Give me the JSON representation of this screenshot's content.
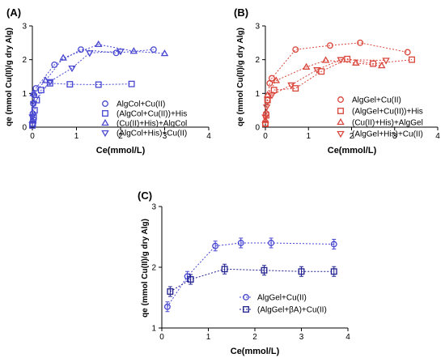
{
  "chart_data": [
    {
      "panel_label": "(A)",
      "type": "scatter",
      "xlabel": "Ce(mmol/L)",
      "ylabel": "qe (mmol Cu(II)/g dry Alg)",
      "xlim": [
        0,
        4
      ],
      "ylim": [
        0,
        3
      ],
      "xticks": [
        "0",
        "1",
        "2",
        "3",
        "4"
      ],
      "yticks": [
        "0",
        "1",
        "2",
        "3"
      ],
      "legend": "bottom-right",
      "series": [
        {
          "name": "AlgCol+Cu(II)",
          "marker": "circle",
          "color": "#4747d1",
          "x": [
            0.0,
            0.01,
            0.02,
            0.04,
            0.08,
            0.5,
            1.1,
            1.9,
            2.75
          ],
          "y": [
            0.1,
            0.4,
            0.7,
            0.95,
            1.15,
            1.85,
            2.3,
            2.2,
            2.3
          ]
        },
        {
          "name": "(AlgCol+Cu(II))+His",
          "marker": "square",
          "color": "#4747d1",
          "x": [
            0.0,
            0.01,
            0.02,
            0.03,
            0.05,
            0.1,
            0.2,
            0.4,
            0.85,
            1.5,
            2.25
          ],
          "y": [
            0.05,
            0.1,
            0.2,
            0.3,
            0.5,
            0.8,
            1.1,
            1.3,
            1.27,
            1.26,
            1.28
          ]
        },
        {
          "name": "(Cu(II)+His)+AlgCol",
          "marker": "triangle-up",
          "color": "#4747d1",
          "x": [
            0.0,
            0.02,
            0.3,
            0.7,
            1.5,
            2.3,
            3.0
          ],
          "y": [
            0.2,
            1.0,
            1.38,
            2.05,
            2.45,
            2.25,
            2.18
          ]
        },
        {
          "name": "(AlgCol+His)+Cu(II)",
          "marker": "triangle-down",
          "color": "#4747d1",
          "x": [
            0.0,
            0.03,
            0.4,
            0.9,
            1.3,
            2.0
          ],
          "y": [
            0.3,
            0.7,
            1.35,
            1.75,
            2.2,
            2.25
          ]
        }
      ]
    },
    {
      "panel_label": "(B)",
      "type": "scatter",
      "xlabel": "Ce(mmol/L)",
      "ylabel": "qe (mmol Cu(II)/g dry Alg)",
      "xlim": [
        0,
        4
      ],
      "ylim": [
        0,
        3
      ],
      "xticks": [
        "0",
        "1",
        "2",
        "3",
        "4"
      ],
      "yticks": [
        "0",
        "1",
        "2",
        "3"
      ],
      "legend": "bottom-right",
      "series": [
        {
          "name": "AlgGel+Cu(II)",
          "marker": "circle",
          "color": "#d9453a",
          "x": [
            0.0,
            0.02,
            0.05,
            0.1,
            0.15,
            0.7,
            1.5,
            2.2,
            3.3
          ],
          "y": [
            0.1,
            0.4,
            0.8,
            1.3,
            1.45,
            2.3,
            2.42,
            2.5,
            2.22
          ]
        },
        {
          "name": "(AlgGel+Cu(II))+His",
          "marker": "square",
          "color": "#d9453a",
          "x": [
            0.0,
            0.02,
            0.05,
            0.2,
            0.7,
            1.3,
            1.9,
            2.5,
            3.4
          ],
          "y": [
            0.1,
            0.35,
            0.8,
            1.1,
            1.15,
            1.65,
            2.02,
            1.88,
            2.0
          ]
        },
        {
          "name": "(Cu(II)+His)+AlgGel",
          "marker": "triangle-up",
          "color": "#d9453a",
          "x": [
            0.0,
            0.05,
            0.25,
            0.95,
            1.4,
            2.1,
            2.7
          ],
          "y": [
            0.2,
            0.95,
            1.38,
            1.78,
            1.98,
            1.9,
            1.82
          ]
        },
        {
          "name": "(AlgGel+His)+Cu(II)",
          "marker": "triangle-down",
          "color": "#d9453a",
          "x": [
            0.0,
            0.03,
            0.15,
            0.6,
            1.2,
            1.75,
            2.8
          ],
          "y": [
            0.3,
            0.6,
            0.95,
            1.25,
            1.7,
            2.0,
            1.98
          ]
        }
      ]
    },
    {
      "panel_label": "(C)",
      "type": "scatter",
      "xlabel": "Ce(mmol/L)",
      "ylabel": "qe (mmol Cu(II)/g dry Alg)",
      "xlim": [
        0,
        4
      ],
      "ylim": [
        1,
        3
      ],
      "xticks": [
        "0",
        "1",
        "2",
        "3",
        "4"
      ],
      "yticks": [
        "1",
        "2",
        "3"
      ],
      "legend": "bottom-right",
      "series": [
        {
          "name": "AlgGel+Cu(II)",
          "marker": "circle",
          "color": "#4747d1",
          "x": [
            0.12,
            0.55,
            1.15,
            1.7,
            2.35,
            3.7
          ],
          "y": [
            1.35,
            1.85,
            2.35,
            2.4,
            2.4,
            2.38
          ]
        },
        {
          "name": "(AlgGel+βA)+Cu(II)",
          "marker": "square",
          "color": "#1f1f8f",
          "x": [
            0.18,
            0.62,
            1.35,
            2.2,
            3.0,
            3.7
          ],
          "y": [
            1.6,
            1.8,
            1.97,
            1.95,
            1.93,
            1.93
          ]
        }
      ]
    }
  ]
}
